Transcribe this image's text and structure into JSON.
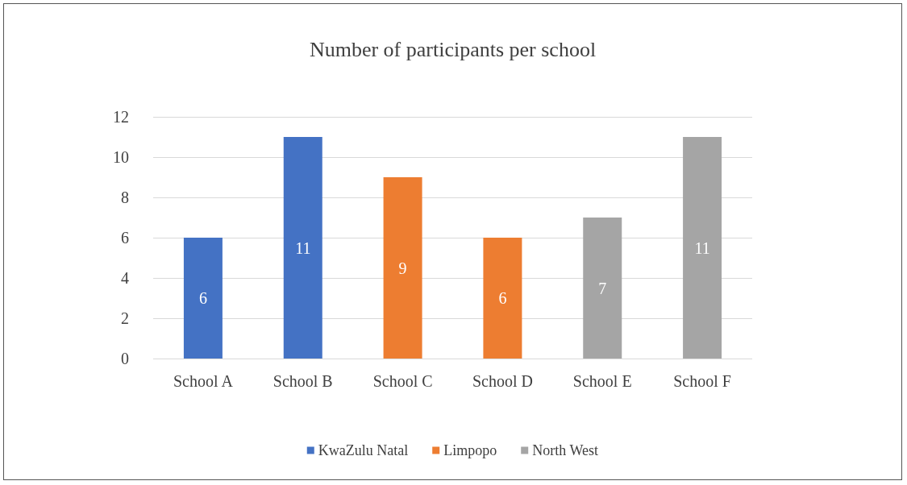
{
  "chart_data": {
    "type": "bar",
    "title": "Number of participants per school",
    "categories": [
      "School A",
      "School B",
      "School C",
      "School D",
      "School E",
      "School F"
    ],
    "series": [
      {
        "name": "KwaZulu Natal",
        "color": "#4472c4",
        "values": [
          6,
          11,
          null,
          null,
          null,
          null
        ]
      },
      {
        "name": "Limpopo",
        "color": "#ed7d31",
        "values": [
          null,
          null,
          9,
          6,
          null,
          null
        ]
      },
      {
        "name": "North West",
        "color": "#a5a5a5",
        "values": [
          null,
          null,
          null,
          null,
          7,
          11
        ]
      }
    ],
    "ylim": [
      0,
      12
    ],
    "yticks": [
      0,
      2,
      4,
      6,
      8,
      10,
      12
    ],
    "grid": "y",
    "legend": "bottom",
    "data_labels": true
  }
}
